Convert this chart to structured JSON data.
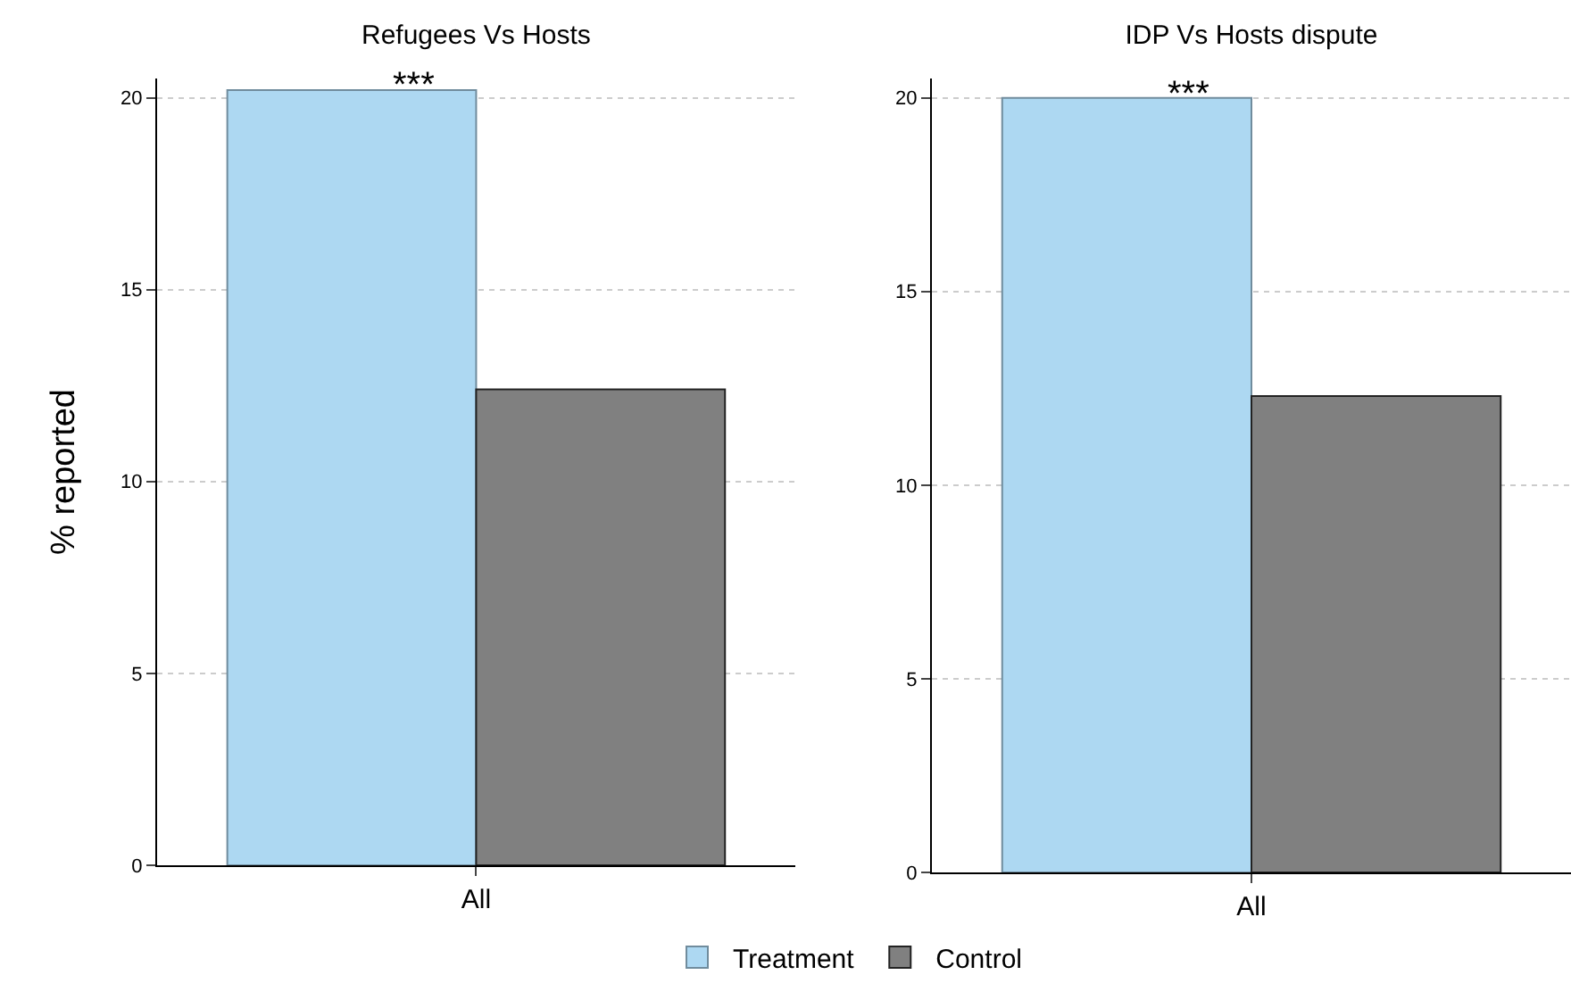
{
  "chart_data": [
    {
      "type": "bar",
      "title": "Refugees Vs Hosts",
      "ylabel": "% reported",
      "categories": [
        "All"
      ],
      "series": [
        {
          "name": "Treatment",
          "color": "#add8f2",
          "values": [
            20.2
          ]
        },
        {
          "name": "Control",
          "color": "#808080",
          "values": [
            12.4
          ]
        }
      ],
      "ylim": [
        0,
        20.5
      ],
      "yticks": [
        0,
        5,
        10,
        15,
        20
      ],
      "grid": "y",
      "legend": "bottom",
      "annotations": [
        {
          "text": "***",
          "y": 20.2
        }
      ]
    },
    {
      "type": "bar",
      "title": "IDP Vs Hosts dispute",
      "categories": [
        "All"
      ],
      "series": [
        {
          "color": "#add8f2",
          "values": [
            20.0
          ]
        },
        {
          "color": "#808080",
          "values": [
            12.3
          ]
        }
      ],
      "ylim": [
        0,
        20.5
      ],
      "yticks": [
        0,
        5,
        10,
        15,
        20
      ],
      "grid": "y",
      "annotations": [
        {
          "text": "***",
          "y": 20.0
        }
      ]
    }
  ]
}
